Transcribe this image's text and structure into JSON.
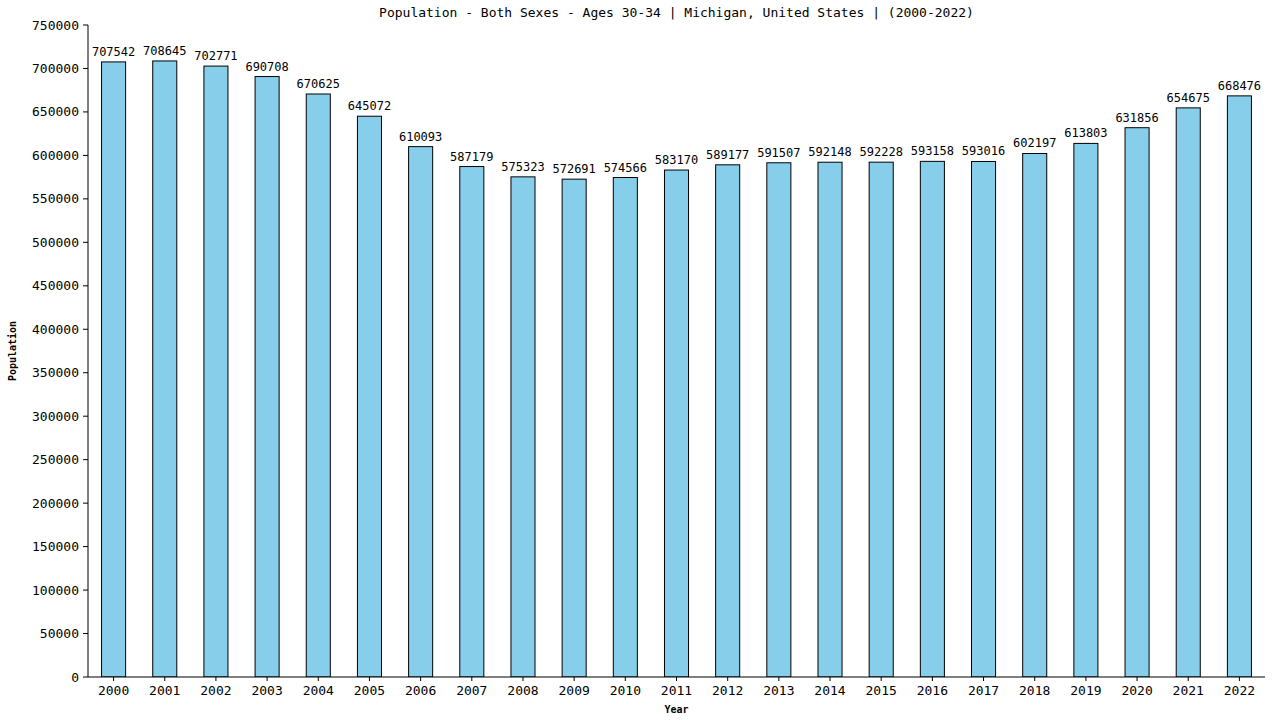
{
  "chart_data": {
    "type": "bar",
    "title": "Population - Both Sexes - Ages 30-34 | Michigan, United States |  (2000-2022)",
    "x_label": "Year",
    "y_label": "Population",
    "categories": [
      "2000",
      "2001",
      "2002",
      "2003",
      "2004",
      "2005",
      "2006",
      "2007",
      "2008",
      "2009",
      "2010",
      "2011",
      "2012",
      "2013",
      "2014",
      "2015",
      "2016",
      "2017",
      "2018",
      "2019",
      "2020",
      "2021",
      "2022"
    ],
    "values": [
      707542,
      708645,
      702771,
      690708,
      670625,
      645072,
      610093,
      587179,
      575323,
      572691,
      574566,
      583170,
      589177,
      591507,
      592148,
      592228,
      593158,
      593016,
      602197,
      613803,
      631856,
      654675,
      668476
    ],
    "color": "#87ceeb",
    "ylim": [
      0,
      750000
    ],
    "yticks": [
      0,
      50000,
      100000,
      150000,
      200000,
      250000,
      300000,
      350000,
      400000,
      450000,
      500000,
      550000,
      600000,
      650000,
      700000,
      750000
    ],
    "grid": false,
    "data_labels": true
  }
}
